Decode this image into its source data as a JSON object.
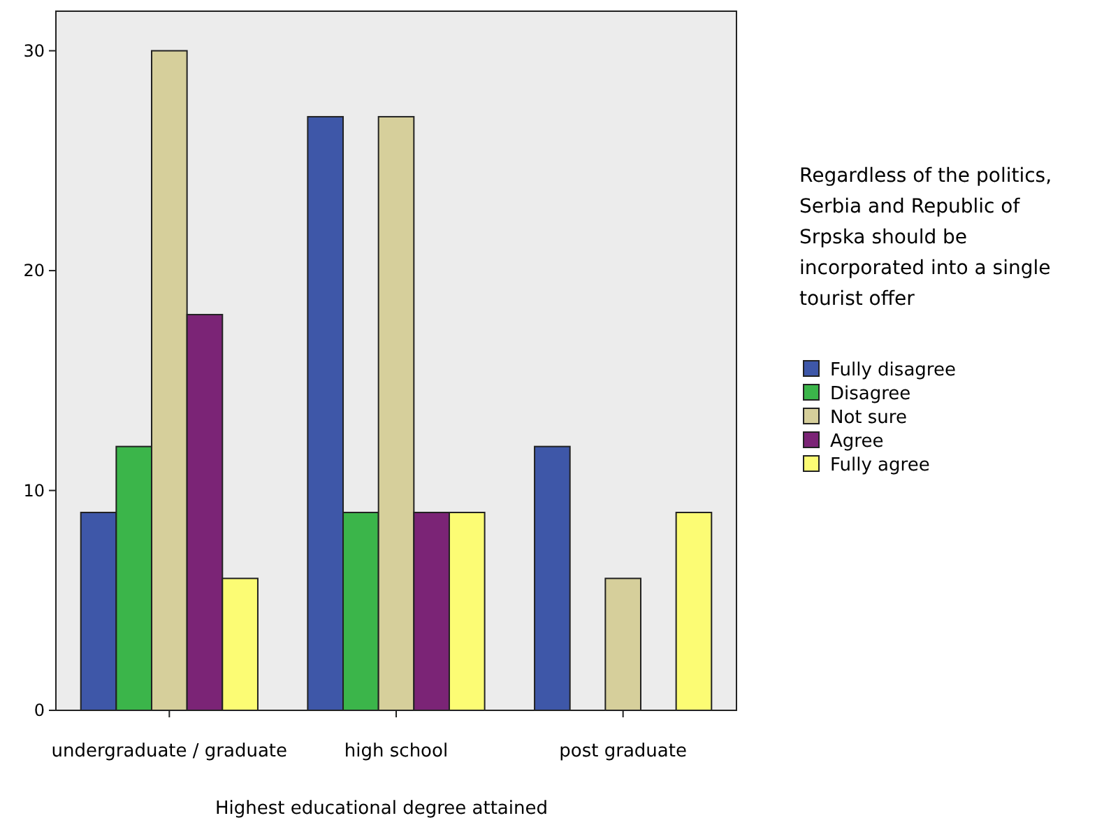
{
  "chart_data": {
    "type": "bar",
    "xlabel": "Highest educational degree attained",
    "legend_title": "Regardless of the politics, Serbia and Republic of Srpska should be incorporated into a single tourist offer",
    "categories": [
      "undergraduate / graduate",
      "high school",
      "post graduate"
    ],
    "series": [
      {
        "name": "Fully disagree",
        "color": "#3e57a8",
        "values": [
          9,
          27,
          12
        ]
      },
      {
        "name": "Disagree",
        "color": "#3bb54a",
        "values": [
          12,
          9,
          null
        ]
      },
      {
        "name": "Not sure",
        "color": "#d6cf9b",
        "values": [
          30,
          27,
          6
        ]
      },
      {
        "name": "Agree",
        "color": "#7b2476",
        "values": [
          18,
          9,
          null
        ]
      },
      {
        "name": "Fully agree",
        "color": "#fcfc74",
        "values": [
          6,
          9,
          9
        ]
      }
    ],
    "ylim": [
      0,
      31.8
    ],
    "yticks": [
      0,
      10,
      20,
      30
    ],
    "grid": false,
    "legend": "right"
  }
}
